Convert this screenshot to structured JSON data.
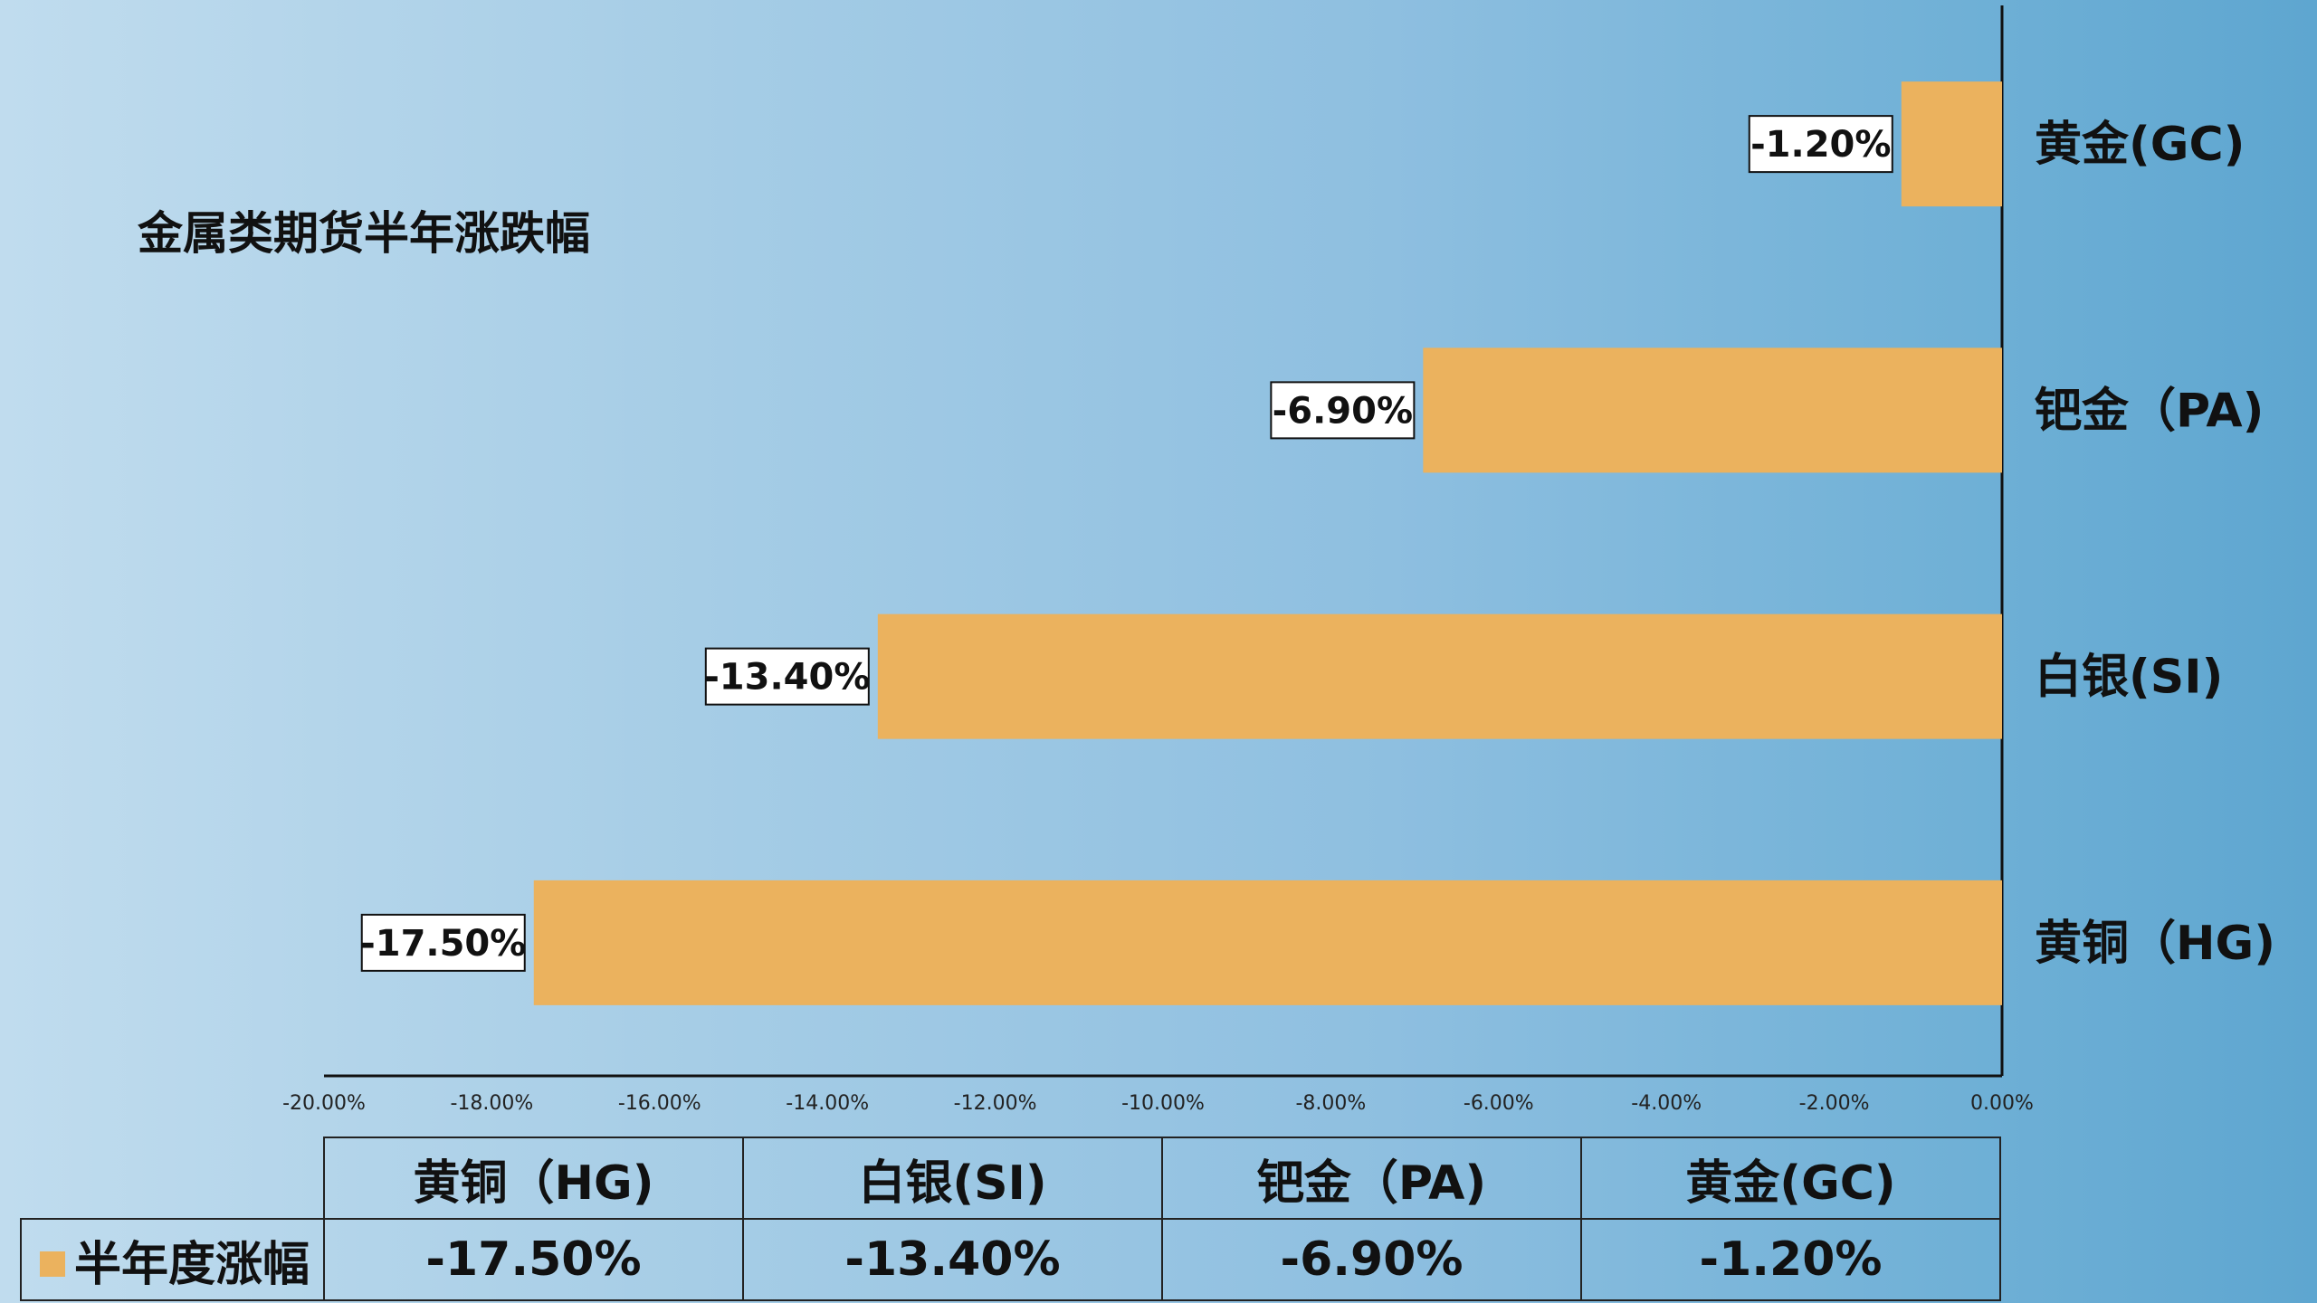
{
  "colors": {
    "bar": "#ebb25e",
    "bar_label_bg": "#ffffff",
    "axis": "#111111"
  },
  "chart_data": {
    "type": "bar",
    "orientation": "horizontal",
    "title": "金属类期货半年涨跌幅",
    "categories": [
      "黄铜（HG)",
      "白银(SI)",
      "钯金（PA)",
      "黄金(GC)"
    ],
    "series": [
      {
        "name": "半年度涨幅",
        "values": [
          -17.5,
          -13.4,
          -6.9,
          -1.2
        ],
        "labels": [
          "-17.50%",
          "-13.40%",
          "-6.90%",
          "-1.20%"
        ]
      }
    ],
    "xlim": [
      -20,
      0
    ],
    "x_ticks": [
      -20,
      -18,
      -16,
      -14,
      -12,
      -10,
      -8,
      -6,
      -4,
      -2,
      0
    ],
    "x_tick_labels": [
      "-20.00%",
      "-18.00%",
      "-16.00%",
      "-14.00%",
      "-12.00%",
      "-10.00%",
      "-8.00%",
      "-6.00%",
      "-4.00%",
      "-2.00%",
      "0.00%"
    ],
    "grid": false,
    "category_axis_position": "right"
  },
  "data_table": {
    "legend_label": "半年度涨幅",
    "columns": [
      "黄铜（HG)",
      "白银(SI)",
      "钯金（PA)",
      "黄金(GC)"
    ],
    "values": [
      "-17.50%",
      "-13.40%",
      "-6.90%",
      "-1.20%"
    ]
  }
}
